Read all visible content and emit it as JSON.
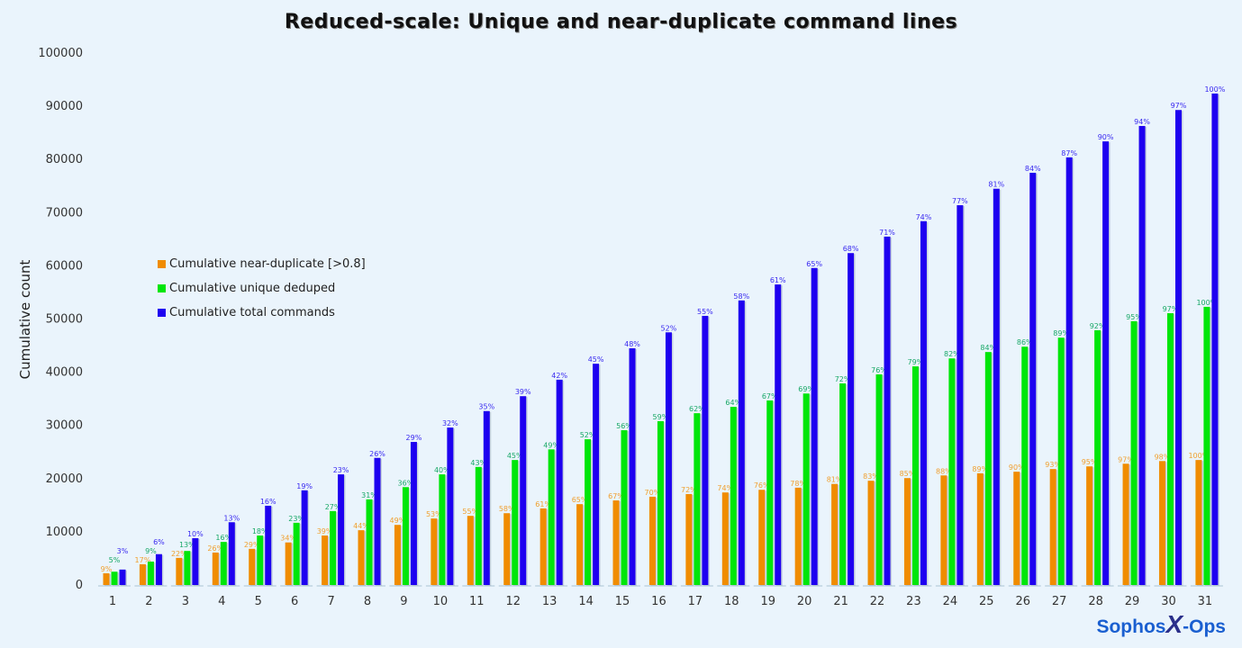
{
  "chart_data": {
    "type": "bar",
    "title": "Reduced-scale: Unique and near-duplicate command lines",
    "xlabel": "",
    "ylabel": "Cumulative count",
    "ylim": [
      0,
      100000
    ],
    "yticks": [
      0,
      10000,
      20000,
      30000,
      40000,
      50000,
      60000,
      70000,
      80000,
      90000,
      100000
    ],
    "grid": false,
    "legend_position": "left-middle",
    "categories": [
      "1",
      "2",
      "3",
      "4",
      "5",
      "6",
      "7",
      "8",
      "9",
      "10",
      "11",
      "12",
      "13",
      "14",
      "15",
      "16",
      "17",
      "18",
      "19",
      "20",
      "21",
      "22",
      "23",
      "24",
      "25",
      "26",
      "27",
      "28",
      "29",
      "30",
      "31"
    ],
    "series": [
      {
        "name": "Cumulative near-duplicate [>0.8]",
        "color": "#f08c00",
        "label_color": "#f0a030",
        "values": [
          2200,
          3900,
          5100,
          6100,
          6800,
          8000,
          9300,
          10300,
          11300,
          12500,
          13000,
          13500,
          14400,
          15200,
          15900,
          16600,
          17100,
          17400,
          17900,
          18300,
          19000,
          19600,
          20100,
          20600,
          21000,
          21300,
          21800,
          22300,
          22800,
          23300,
          23500
        ],
        "labels": [
          "9%",
          "17%",
          "22%",
          "26%",
          "29%",
          "34%",
          "39%",
          "44%",
          "49%",
          "53%",
          "55%",
          "58%",
          "61%",
          "65%",
          "67%",
          "70%",
          "72%",
          "74%",
          "76%",
          "78%",
          "81%",
          "83%",
          "85%",
          "88%",
          "89%",
          "90%",
          "93%",
          "95%",
          "97%",
          "98%",
          "100%"
        ]
      },
      {
        "name": "Cumulative unique deduped",
        "color": "#00e60a",
        "label_color": "#1aa868",
        "values": [
          2500,
          4400,
          6400,
          8100,
          9300,
          11700,
          13900,
          16100,
          18400,
          20800,
          22200,
          23500,
          25500,
          27400,
          29100,
          30800,
          32300,
          33500,
          34700,
          36000,
          37900,
          39600,
          41100,
          42600,
          43800,
          44800,
          46500,
          47900,
          49600,
          51100,
          52300
        ],
        "labels": [
          "5%",
          "9%",
          "13%",
          "16%",
          "18%",
          "23%",
          "27%",
          "31%",
          "36%",
          "40%",
          "43%",
          "45%",
          "49%",
          "52%",
          "56%",
          "59%",
          "62%",
          "64%",
          "67%",
          "69%",
          "72%",
          "76%",
          "79%",
          "82%",
          "84%",
          "86%",
          "89%",
          "92%",
          "95%",
          "97%",
          "100%"
        ]
      },
      {
        "name": "Cumulative total commands",
        "color": "#1e00f0",
        "label_color": "#3a2af0",
        "values": [
          2900,
          5800,
          8800,
          11800,
          14900,
          17800,
          20800,
          23900,
          26900,
          29600,
          32700,
          35500,
          38600,
          41600,
          44500,
          47500,
          50600,
          53500,
          56500,
          59600,
          62400,
          65500,
          68400,
          71400,
          74500,
          77500,
          80400,
          83400,
          86300,
          89300,
          92400
        ],
        "labels": [
          "3%",
          "6%",
          "10%",
          "13%",
          "16%",
          "19%",
          "23%",
          "26%",
          "29%",
          "32%",
          "35%",
          "39%",
          "42%",
          "45%",
          "48%",
          "52%",
          "55%",
          "58%",
          "61%",
          "65%",
          "68%",
          "71%",
          "74%",
          "77%",
          "81%",
          "84%",
          "87%",
          "90%",
          "94%",
          "97%",
          "100%"
        ]
      }
    ]
  },
  "logo": {
    "text_left": "Sophos",
    "text_x": "X",
    "text_right": "-Ops"
  }
}
